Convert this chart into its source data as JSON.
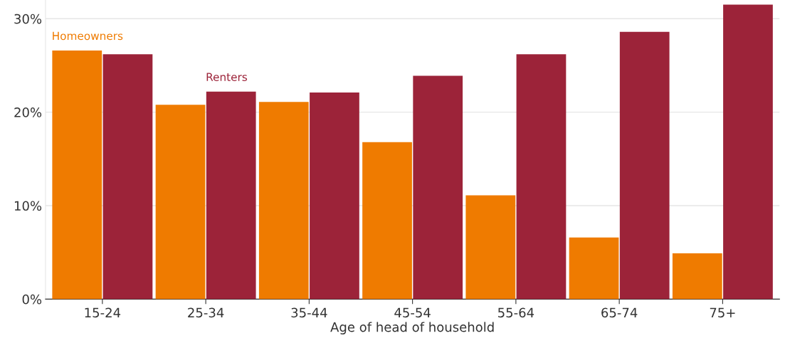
{
  "chart_data": {
    "type": "bar",
    "xlabel": "Age of head of household",
    "categories": [
      "15-24",
      "25-34",
      "35-44",
      "45-54",
      "55-64",
      "65-74",
      "75+"
    ],
    "series": [
      {
        "name": "Homeowners",
        "color": "#ef7b00",
        "values": [
          26.6,
          20.8,
          21.1,
          16.8,
          11.1,
          6.6,
          4.9
        ]
      },
      {
        "name": "Renters",
        "color": "#9c2339",
        "values": [
          26.2,
          22.2,
          22.1,
          23.9,
          26.2,
          28.6,
          31.5
        ]
      }
    ],
    "ylim": [
      0,
      32
    ],
    "yticks": [
      {
        "value": 0,
        "label": "0%"
      },
      {
        "value": 10,
        "label": "10%"
      },
      {
        "value": 20,
        "label": "20%"
      },
      {
        "value": 30,
        "label": "30%"
      }
    ],
    "grid": "y",
    "legend": false
  }
}
